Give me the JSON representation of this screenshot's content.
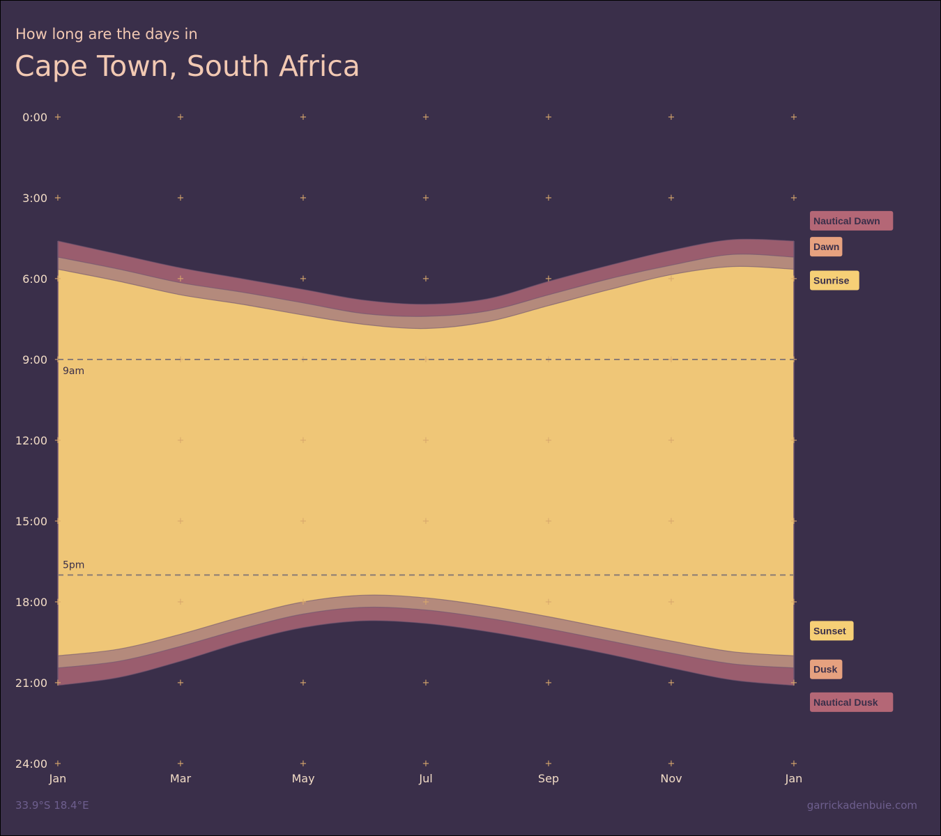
{
  "header": {
    "subtitle": "How long are the days in",
    "title": "Cape Town, South Africa"
  },
  "footer": {
    "coords": "33.9°S 18.4°E",
    "credit": "garrickadenbuie.com"
  },
  "colors": {
    "background": "#3a2f4a",
    "daylight": "#efc677",
    "twilight": "#b48a7c",
    "nautical": "#9a5d6e",
    "grid_marker": "#d9a86c",
    "reference_line": "#8a7c74",
    "text": "#f2dcc6"
  },
  "chart_data": {
    "type": "area",
    "title": "Cape Town, South Africa",
    "subtitle": "How long are the days in",
    "ylim": [
      0,
      24
    ],
    "y_reversed": true,
    "y_ticks": [
      0,
      3,
      6,
      9,
      12,
      15,
      18,
      21,
      24
    ],
    "y_tick_labels": [
      "0:00",
      "3:00",
      "6:00",
      "9:00",
      "12:00",
      "15:00",
      "18:00",
      "21:00",
      "24:00"
    ],
    "x_ticks": [
      "Jan",
      "Mar",
      "May",
      "Jul",
      "Sep",
      "Nov",
      "Jan"
    ],
    "x_points": [
      "Jan 1",
      "Feb 1",
      "Mar 1",
      "Apr 1",
      "May 1",
      "Jun 1",
      "Jul 1",
      "Aug 1",
      "Sep 1",
      "Oct 1",
      "Nov 1",
      "Dec 1",
      "Jan 1"
    ],
    "series": [
      {
        "name": "Nautical Dawn",
        "values": [
          4.6,
          5.1,
          5.6,
          6.0,
          6.4,
          6.8,
          6.95,
          6.75,
          6.1,
          5.5,
          4.95,
          4.55,
          4.6
        ]
      },
      {
        "name": "Dawn",
        "values": [
          5.2,
          5.65,
          6.15,
          6.5,
          6.9,
          7.3,
          7.4,
          7.2,
          6.6,
          6.0,
          5.5,
          5.1,
          5.2
        ]
      },
      {
        "name": "Sunrise",
        "values": [
          5.65,
          6.1,
          6.6,
          6.95,
          7.35,
          7.7,
          7.85,
          7.6,
          7.0,
          6.4,
          5.85,
          5.55,
          5.65
        ]
      },
      {
        "name": "Sunset",
        "values": [
          20.0,
          19.75,
          19.2,
          18.55,
          18.0,
          17.75,
          17.85,
          18.15,
          18.55,
          19.0,
          19.45,
          19.85,
          20.0
        ]
      },
      {
        "name": "Dusk",
        "values": [
          20.45,
          20.2,
          19.65,
          19.0,
          18.45,
          18.2,
          18.3,
          18.6,
          19.0,
          19.45,
          19.9,
          20.3,
          20.45
        ]
      },
      {
        "name": "Nautical Dusk",
        "values": [
          21.1,
          20.8,
          20.2,
          19.5,
          18.95,
          18.7,
          18.8,
          19.1,
          19.5,
          19.95,
          20.45,
          20.9,
          21.1
        ]
      }
    ],
    "reference_lines": [
      {
        "y": 9,
        "label": "9am"
      },
      {
        "y": 17,
        "label": "5pm"
      }
    ],
    "legend": [
      {
        "label": "Nautical Dawn",
        "color": "#b46776"
      },
      {
        "label": "Dawn",
        "color": "#e6a17f"
      },
      {
        "label": "Sunrise",
        "color": "#f6cf76"
      },
      {
        "label": "Sunset",
        "color": "#f6cf76"
      },
      {
        "label": "Dusk",
        "color": "#e6a17f"
      },
      {
        "label": "Nautical Dusk",
        "color": "#b46776"
      }
    ]
  }
}
